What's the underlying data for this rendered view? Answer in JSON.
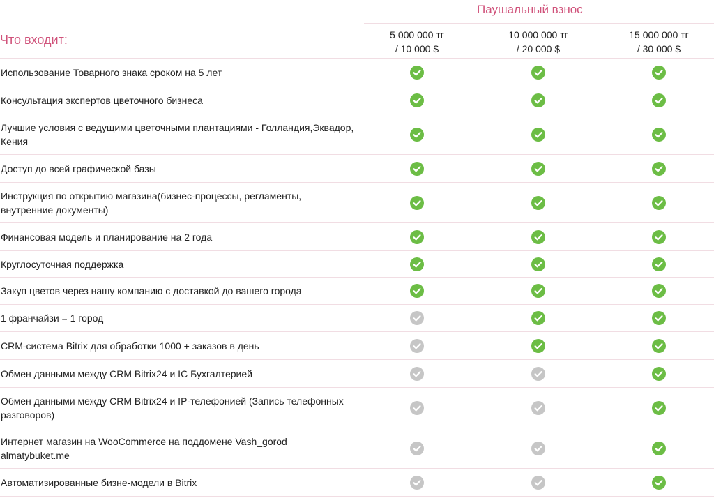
{
  "header": {
    "caption": "Паушальный взнос",
    "label": "Что входит:",
    "packages": [
      {
        "line1": "5 000 000 тг",
        "line2": "/ 10 000 $"
      },
      {
        "line1": "10 000 000 тг",
        "line2": "/ 20 000 $"
      },
      {
        "line1": "15 000 000 тг",
        "line2": "/ 30 000 $"
      }
    ]
  },
  "colors": {
    "accent": "#d0537b",
    "included": "#6cbd45",
    "not_included": "#c6c6c6",
    "divider": "#f1dde3"
  },
  "features": [
    {
      "label": "Использование Товарного знака сроком на 5 лет",
      "included": [
        true,
        true,
        true
      ]
    },
    {
      "label": "Консультация экспертов цветочного бизнеса",
      "included": [
        true,
        true,
        true
      ]
    },
    {
      "label": "Лучшие условия с ведущими цветочными плантациями - Голландия,Эквадор, Кения",
      "included": [
        true,
        true,
        true
      ]
    },
    {
      "label": "Доступ до всей графической базы",
      "included": [
        true,
        true,
        true
      ]
    },
    {
      "label": "Инструкция по открытию магазина(бизнес-процессы, регламенты, внутренние документы)",
      "included": [
        true,
        true,
        true
      ]
    },
    {
      "label": "Финансовая модель и планирование на 2 года",
      "included": [
        true,
        true,
        true
      ]
    },
    {
      "label": "Круглосуточная поддержка",
      "included": [
        true,
        true,
        true
      ]
    },
    {
      "label": "Закуп цветов через нашу компанию с доставкой до вашего города",
      "included": [
        true,
        true,
        true
      ]
    },
    {
      "label": "1 франчайзи = 1 город",
      "included": [
        false,
        true,
        true
      ]
    },
    {
      "label": "CRM-система Bitrix для обработки 1000 + заказов в день",
      "included": [
        false,
        true,
        true
      ]
    },
    {
      "label": "Обмен данными между CRM Bitrix24 и IC Бухгалтерией",
      "included": [
        false,
        false,
        true
      ]
    },
    {
      "label": "Обмен данными между CRM Bitrix24 и IP-телефонией (Запись телефонных разговоров)",
      "included": [
        false,
        false,
        true
      ]
    },
    {
      "label": "Интернет магазин на WooCommerce на поддомене Vash_gorod almatybuket.me",
      "included": [
        false,
        false,
        true
      ]
    },
    {
      "label": "Автоматизированные бизне-модели в Bitrix",
      "included": [
        false,
        false,
        true
      ]
    }
  ]
}
